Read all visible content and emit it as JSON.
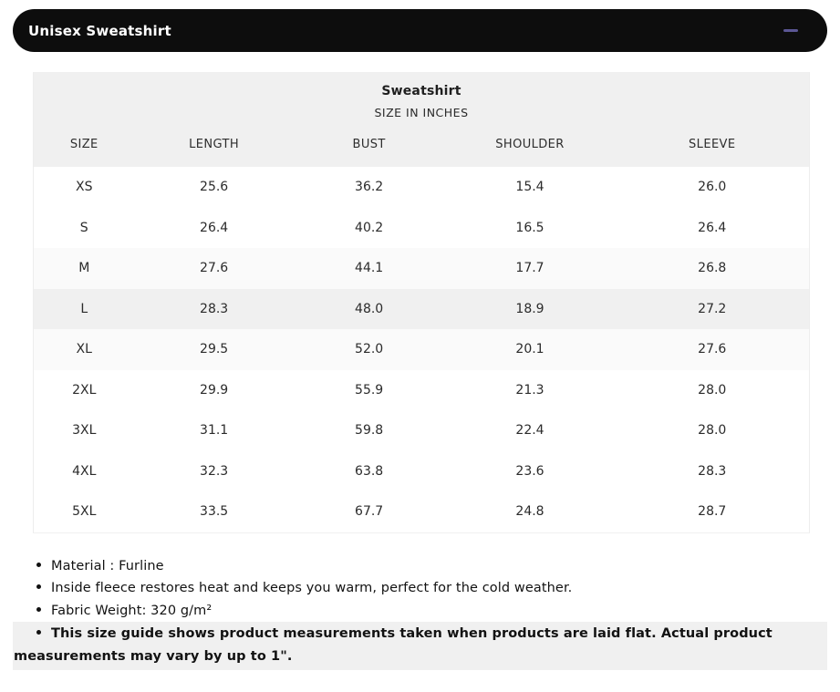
{
  "accordion": {
    "title": "Unisex Sweatshirt",
    "collapse_icon": "minus",
    "header_bg": "#0d0d0d",
    "icon_color": "#5b5694"
  },
  "size_chart": {
    "title": "Sweatshirt",
    "subtitle": "SIZE IN INCHES",
    "header_bg": "#f0f0f0",
    "highlight_row_bg": "#f0f0f0",
    "soft_row_bg": "#fafafa",
    "columns": [
      "SIZE",
      "LENGTH",
      "BUST",
      "SHOULDER",
      "SLEEVE"
    ],
    "rows": [
      {
        "size": "XS",
        "length": "25.6",
        "bust": "36.2",
        "shoulder": "15.4",
        "sleeve": "26.0"
      },
      {
        "size": "S",
        "length": "26.4",
        "bust": "40.2",
        "shoulder": "16.5",
        "sleeve": "26.4"
      },
      {
        "size": "M",
        "length": "27.6",
        "bust": "44.1",
        "shoulder": "17.7",
        "sleeve": "26.8"
      },
      {
        "size": "L",
        "length": "28.3",
        "bust": "48.0",
        "shoulder": "18.9",
        "sleeve": "27.2"
      },
      {
        "size": "XL",
        "length": "29.5",
        "bust": "52.0",
        "shoulder": "20.1",
        "sleeve": "27.6"
      },
      {
        "size": "2XL",
        "length": "29.9",
        "bust": "55.9",
        "shoulder": "21.3",
        "sleeve": "28.0"
      },
      {
        "size": "3XL",
        "length": "31.1",
        "bust": "59.8",
        "shoulder": "22.4",
        "sleeve": "28.0"
      },
      {
        "size": "4XL",
        "length": "32.3",
        "bust": "63.8",
        "shoulder": "23.6",
        "sleeve": "28.3"
      },
      {
        "size": "5XL",
        "length": "33.5",
        "bust": "67.7",
        "shoulder": "24.8",
        "sleeve": "28.7"
      }
    ]
  },
  "notes": [
    "Material : Furline",
    "Inside fleece restores heat and keeps you warm, perfect for the cold weather.",
    "Fabric Weight: 320 g/m²",
    "This size guide shows product measurements taken when products are laid flat. Actual product measurements may vary by up to 1\"."
  ]
}
